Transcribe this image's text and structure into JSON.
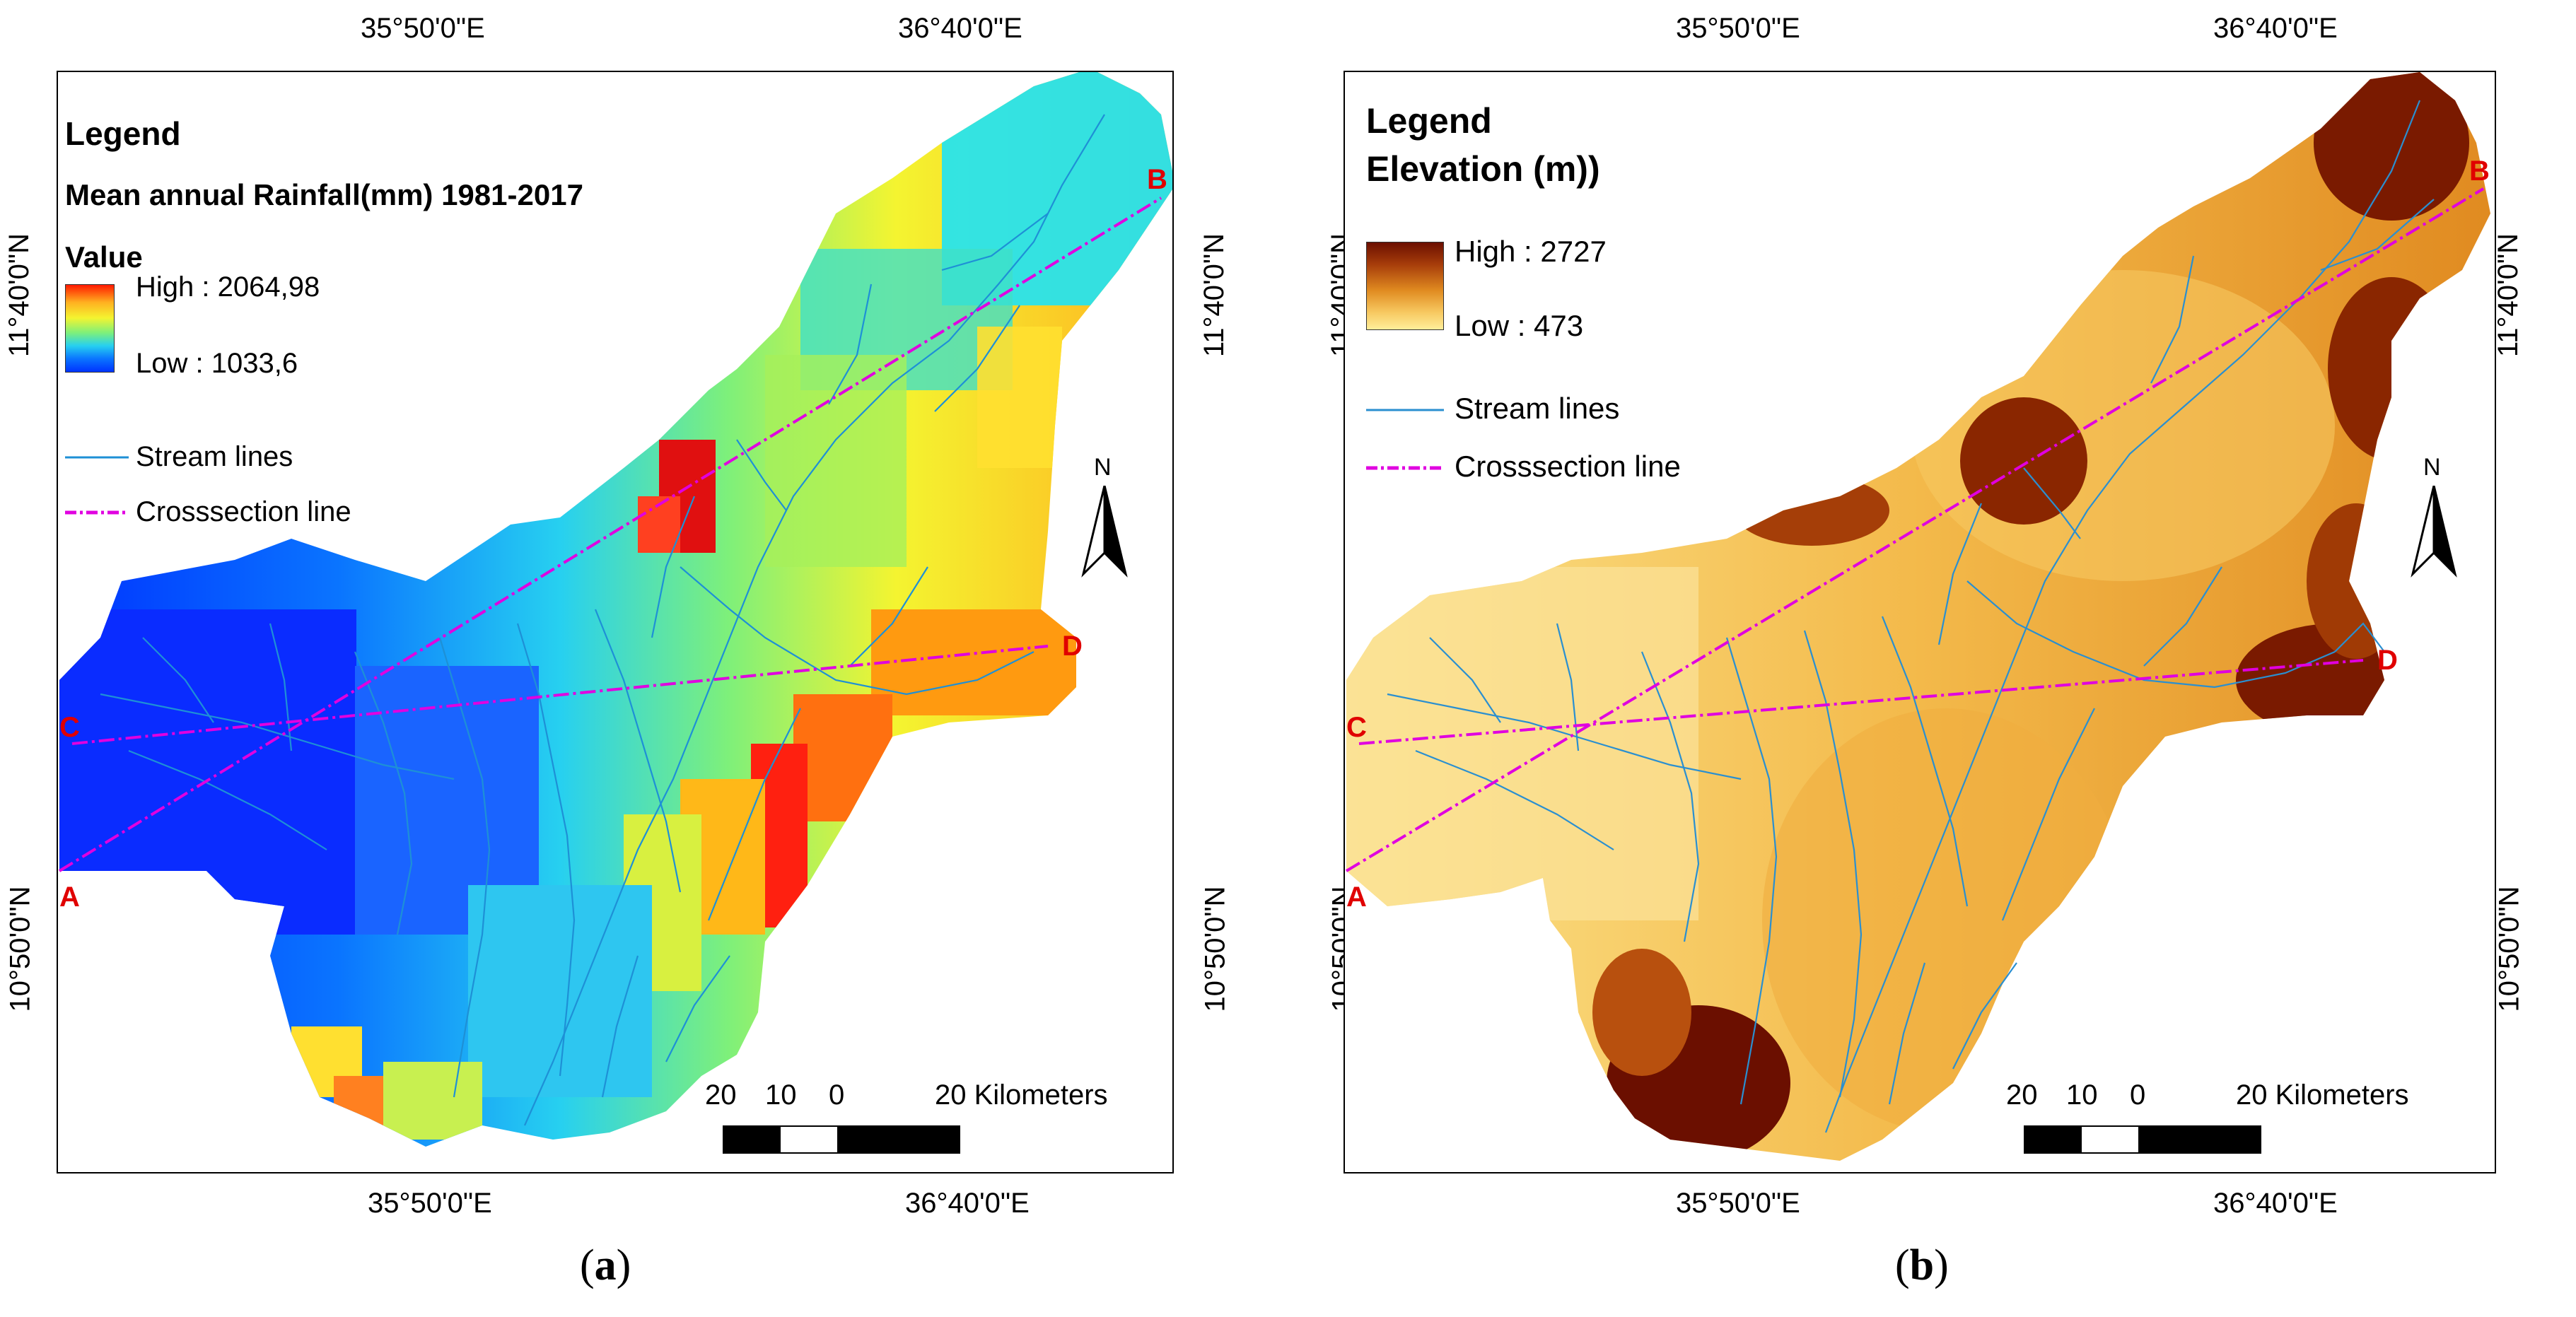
{
  "panels": {
    "a": {
      "caption_open": "(",
      "caption_letter": "a",
      "caption_close": ")",
      "lon_labels": [
        "35°50'0\"E",
        "36°40'0\"E"
      ],
      "lat_labels": [
        "11°40'0\"N",
        "10°50'0\"N"
      ],
      "legend": {
        "title": "Legend",
        "subtitle": "Mean annual Rainfall(mm) 1981-2017",
        "value_label": "Value",
        "high": "High : 2064,98",
        "low": "Low : 1033,6",
        "stream": "Stream lines",
        "cross": "Crosssection line"
      },
      "points": [
        "A",
        "B",
        "C",
        "D"
      ],
      "north": "N",
      "scale": {
        "left": "20",
        "mid": "10",
        "zero": "0",
        "right": "20 Kilometers"
      },
      "colors": {
        "high": "#ff1a00",
        "low": "#0033ff",
        "stream": "#1e90d6",
        "cross": "#e000e0"
      }
    },
    "b": {
      "caption_open": "(",
      "caption_letter": "b",
      "caption_close": ")",
      "lon_labels": [
        "35°50'0\"E",
        "36°40'0\"E"
      ],
      "lat_labels": [
        "11°40'0\"N",
        "10°50'0\"N"
      ],
      "legend": {
        "title": "Legend",
        "subtitle": "Elevation (m))",
        "high": "High : 2727",
        "low": "Low : 473",
        "stream": "Stream lines",
        "cross": "Crosssection line"
      },
      "points": [
        "A",
        "B",
        "C",
        "D"
      ],
      "north": "N",
      "scale": {
        "left": "20",
        "mid": "10",
        "zero": "0",
        "right": "20 Kilometers"
      },
      "colors": {
        "high": "#6b0f00",
        "low": "#ffee9a",
        "stream": "#2a8fd0",
        "cross": "#e000e0"
      }
    }
  }
}
